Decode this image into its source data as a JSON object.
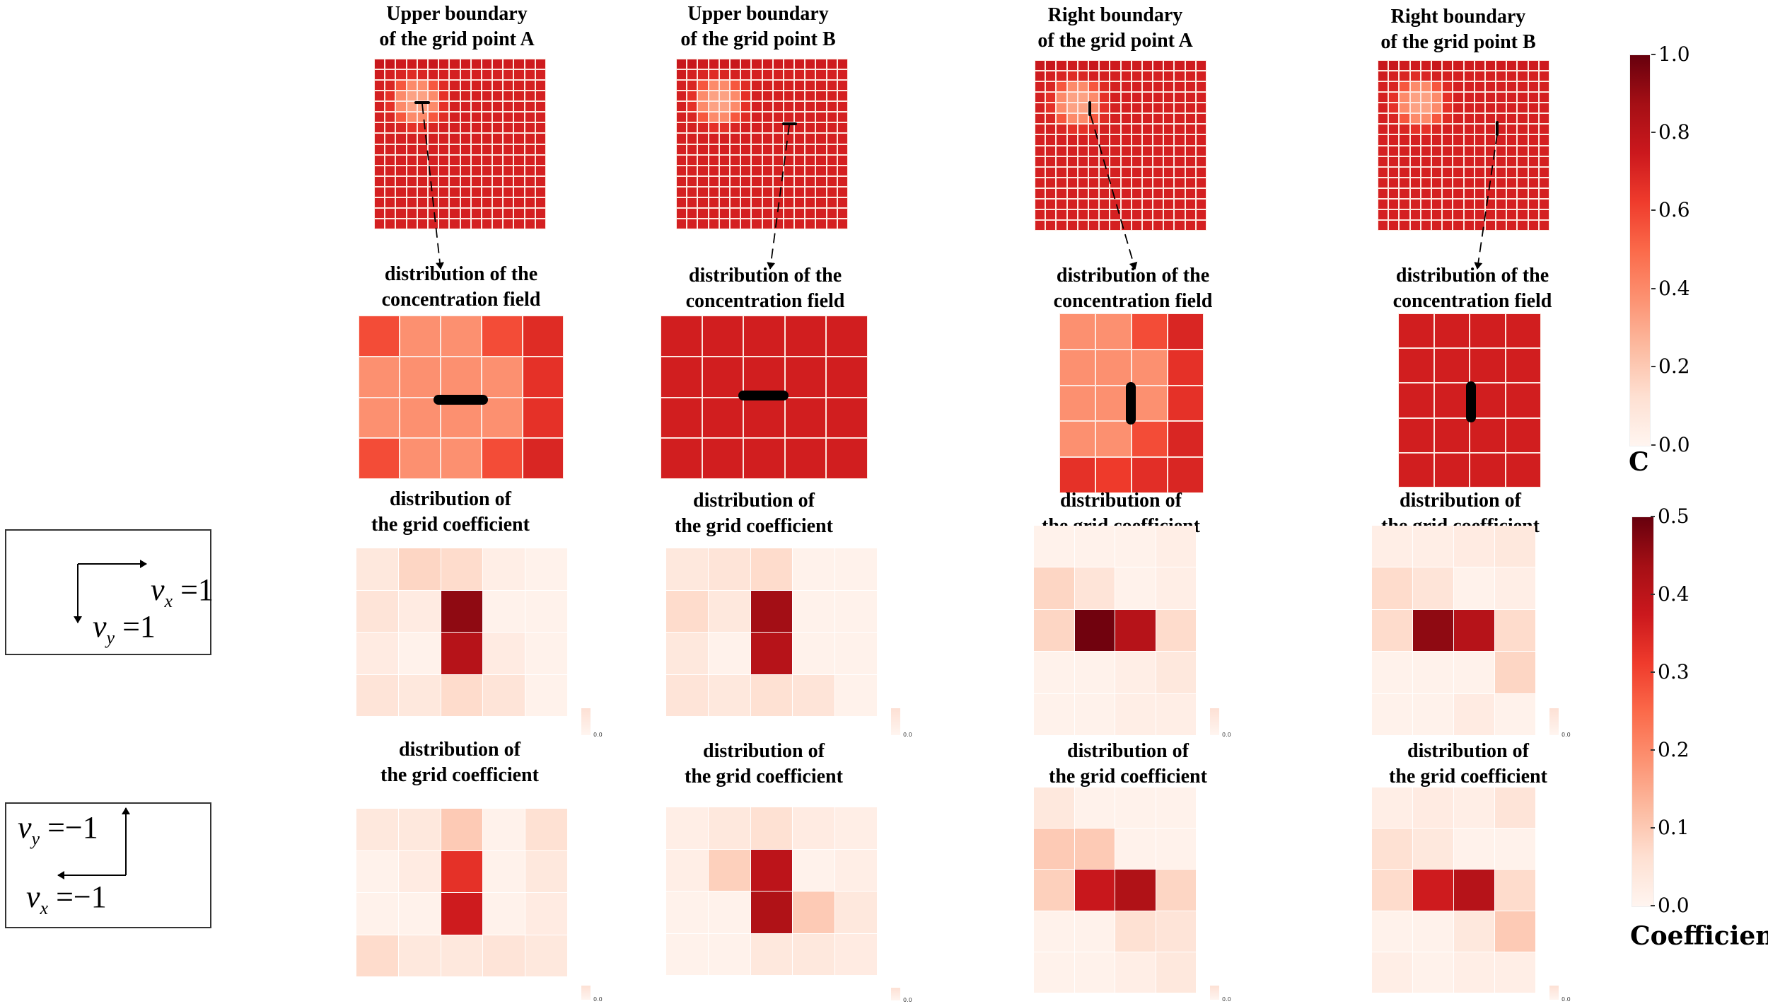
{
  "columns": [
    {
      "title": [
        "Upper boundary",
        "of the grid point A"
      ],
      "conc_title": [
        "distribution of the",
        "concentration field"
      ],
      "coef_title_1": [
        "distribution of",
        "the grid coefficient"
      ],
      "coef_title_2": [
        "distribution of",
        "the grid coefficient"
      ]
    },
    {
      "title": [
        "Upper boundary",
        "of the grid point B"
      ],
      "conc_title": [
        "distribution of the",
        "concentration field"
      ],
      "coef_title_1": [
        "distribution of",
        "the grid coefficient"
      ],
      "coef_title_2": [
        "distribution of",
        "the grid coefficient"
      ]
    },
    {
      "title": [
        "Right boundary",
        "of the grid point A"
      ],
      "conc_title": [
        "distribution of the",
        "concentration field"
      ],
      "coef_title_1": [
        "distribution of",
        "the grid coefficient"
      ],
      "coef_title_2": [
        "distribution of",
        "the grid coefficient"
      ]
    },
    {
      "title": [
        "Right boundary",
        "of the grid point B"
      ],
      "conc_title": [
        "distribution of the",
        "concentration field"
      ],
      "coef_title_1": [
        "distribution of",
        "the grid coefficient"
      ],
      "coef_title_2": [
        "distribution of",
        "the grid coefficient"
      ]
    }
  ],
  "global_field": [
    [
      0.76,
      0.76,
      0.74,
      0.74,
      0.74,
      0.76,
      0.74,
      0.74,
      0.74,
      0.74,
      0.74,
      0.74,
      0.74,
      0.74,
      0.74,
      0.74
    ],
    [
      0.74,
      0.72,
      0.7,
      0.68,
      0.7,
      0.72,
      0.72,
      0.72,
      0.72,
      0.72,
      0.72,
      0.72,
      0.72,
      0.72,
      0.72,
      0.72
    ],
    [
      0.72,
      0.7,
      0.55,
      0.4,
      0.4,
      0.55,
      0.68,
      0.72,
      0.72,
      0.72,
      0.72,
      0.72,
      0.72,
      0.72,
      0.72,
      0.72
    ],
    [
      0.72,
      0.66,
      0.4,
      0.33,
      0.33,
      0.4,
      0.66,
      0.72,
      0.72,
      0.72,
      0.72,
      0.72,
      0.72,
      0.72,
      0.72,
      0.72
    ],
    [
      0.72,
      0.66,
      0.4,
      0.33,
      0.33,
      0.4,
      0.66,
      0.72,
      0.72,
      0.72,
      0.72,
      0.72,
      0.72,
      0.72,
      0.72,
      0.72
    ],
    [
      0.72,
      0.7,
      0.55,
      0.4,
      0.4,
      0.55,
      0.68,
      0.72,
      0.72,
      0.72,
      0.72,
      0.72,
      0.72,
      0.72,
      0.72,
      0.72
    ],
    [
      0.72,
      0.72,
      0.7,
      0.66,
      0.66,
      0.7,
      0.72,
      0.72,
      0.72,
      0.72,
      0.72,
      0.72,
      0.72,
      0.72,
      0.72,
      0.72
    ],
    [
      0.72,
      0.72,
      0.72,
      0.72,
      0.72,
      0.72,
      0.72,
      0.72,
      0.72,
      0.72,
      0.72,
      0.72,
      0.72,
      0.72,
      0.72,
      0.72
    ],
    [
      0.72,
      0.72,
      0.72,
      0.72,
      0.72,
      0.72,
      0.72,
      0.72,
      0.72,
      0.72,
      0.72,
      0.72,
      0.72,
      0.72,
      0.72,
      0.72
    ],
    [
      0.72,
      0.72,
      0.72,
      0.72,
      0.72,
      0.72,
      0.72,
      0.72,
      0.72,
      0.72,
      0.72,
      0.72,
      0.72,
      0.72,
      0.72,
      0.72
    ],
    [
      0.72,
      0.72,
      0.72,
      0.72,
      0.72,
      0.72,
      0.72,
      0.72,
      0.72,
      0.72,
      0.72,
      0.72,
      0.72,
      0.72,
      0.72,
      0.72
    ],
    [
      0.72,
      0.72,
      0.72,
      0.72,
      0.72,
      0.72,
      0.72,
      0.72,
      0.72,
      0.72,
      0.72,
      0.72,
      0.72,
      0.72,
      0.72,
      0.72
    ],
    [
      0.72,
      0.72,
      0.72,
      0.72,
      0.72,
      0.72,
      0.72,
      0.72,
      0.72,
      0.72,
      0.72,
      0.72,
      0.72,
      0.72,
      0.72,
      0.72
    ],
    [
      0.72,
      0.72,
      0.72,
      0.72,
      0.72,
      0.72,
      0.72,
      0.72,
      0.72,
      0.72,
      0.72,
      0.72,
      0.72,
      0.72,
      0.72,
      0.72
    ],
    [
      0.72,
      0.72,
      0.72,
      0.72,
      0.72,
      0.72,
      0.72,
      0.72,
      0.72,
      0.72,
      0.72,
      0.72,
      0.72,
      0.72,
      0.72,
      0.72
    ],
    [
      0.72,
      0.72,
      0.72,
      0.72,
      0.72,
      0.72,
      0.72,
      0.72,
      0.72,
      0.72,
      0.72,
      0.72,
      0.72,
      0.72,
      0.72,
      0.72
    ]
  ],
  "local_fields": [
    [
      [
        0.58,
        0.38,
        0.38,
        0.58,
        0.68
      ],
      [
        0.38,
        0.38,
        0.38,
        0.38,
        0.66
      ],
      [
        0.38,
        0.38,
        0.38,
        0.38,
        0.66
      ],
      [
        0.58,
        0.38,
        0.38,
        0.58,
        0.7
      ]
    ],
    [
      [
        0.73,
        0.73,
        0.73,
        0.73,
        0.73
      ],
      [
        0.73,
        0.73,
        0.73,
        0.73,
        0.73
      ],
      [
        0.73,
        0.73,
        0.73,
        0.73,
        0.73
      ],
      [
        0.73,
        0.73,
        0.73,
        0.73,
        0.73
      ]
    ],
    [
      [
        0.38,
        0.38,
        0.58,
        0.7
      ],
      [
        0.38,
        0.38,
        0.38,
        0.66
      ],
      [
        0.38,
        0.38,
        0.38,
        0.66
      ],
      [
        0.38,
        0.38,
        0.58,
        0.7
      ],
      [
        0.66,
        0.63,
        0.67,
        0.7
      ]
    ],
    [
      [
        0.73,
        0.73,
        0.73,
        0.73
      ],
      [
        0.73,
        0.73,
        0.73,
        0.73
      ],
      [
        0.73,
        0.73,
        0.73,
        0.73
      ],
      [
        0.73,
        0.73,
        0.73,
        0.73
      ],
      [
        0.73,
        0.73,
        0.73,
        0.73
      ]
    ]
  ],
  "coefficients_positive_velocity": [
    [
      [
        0.04,
        0.08,
        0.07,
        0.02,
        0.01
      ],
      [
        0.05,
        0.03,
        0.46,
        0.01,
        0.01
      ],
      [
        0.03,
        0.01,
        0.41,
        0.03,
        0.01
      ],
      [
        0.05,
        0.04,
        0.07,
        0.05,
        0.01
      ]
    ],
    [
      [
        0.04,
        0.05,
        0.07,
        0.01,
        0.01
      ],
      [
        0.07,
        0.04,
        0.44,
        0.01,
        0.01
      ],
      [
        0.04,
        0.01,
        0.41,
        0.01,
        0.01
      ],
      [
        0.05,
        0.04,
        0.06,
        0.05,
        0.01
      ]
    ],
    [
      [
        0.01,
        0.01,
        0.01,
        0.02
      ],
      [
        0.08,
        0.05,
        0.01,
        0.02
      ],
      [
        0.08,
        0.49,
        0.41,
        0.07
      ],
      [
        0.01,
        0.01,
        0.02,
        0.04
      ],
      [
        0.01,
        0.01,
        0.02,
        0.02
      ]
    ],
    [
      [
        0.02,
        0.02,
        0.03,
        0.04
      ],
      [
        0.07,
        0.05,
        0.01,
        0.02
      ],
      [
        0.07,
        0.46,
        0.41,
        0.07
      ],
      [
        0.01,
        0.01,
        0.01,
        0.08
      ],
      [
        0.01,
        0.01,
        0.03,
        0.01
      ]
    ]
  ],
  "coefficients_negative_velocity": [
    [
      [
        0.04,
        0.04,
        0.1,
        0.01,
        0.06
      ],
      [
        0.01,
        0.03,
        0.33,
        0.01,
        0.04
      ],
      [
        0.01,
        0.01,
        0.37,
        0.01,
        0.03
      ],
      [
        0.07,
        0.04,
        0.04,
        0.05,
        0.04
      ]
    ],
    [
      [
        0.02,
        0.04,
        0.06,
        0.03,
        0.02
      ],
      [
        0.02,
        0.09,
        0.4,
        0.01,
        0.02
      ],
      [
        0.01,
        0.01,
        0.42,
        0.1,
        0.04
      ],
      [
        0.01,
        0.01,
        0.04,
        0.04,
        0.03
      ]
    ],
    [
      [
        0.04,
        0.01,
        0.01,
        0.01
      ],
      [
        0.1,
        0.1,
        0.01,
        0.01
      ],
      [
        0.09,
        0.38,
        0.42,
        0.08
      ],
      [
        0.01,
        0.01,
        0.06,
        0.05
      ],
      [
        0.01,
        0.01,
        0.02,
        0.04
      ]
    ],
    [
      [
        0.02,
        0.03,
        0.02,
        0.05
      ],
      [
        0.06,
        0.04,
        0.01,
        0.01
      ],
      [
        0.07,
        0.37,
        0.41,
        0.07
      ],
      [
        0.01,
        0.01,
        0.04,
        0.1
      ],
      [
        0.02,
        0.01,
        0.02,
        0.02
      ]
    ]
  ],
  "mini_tick": "0.0",
  "colorbars": {
    "concentration": {
      "title": "C",
      "min": 0,
      "max": 1.0,
      "ticks": [
        "1.0",
        "0.8",
        "0.6",
        "0.4",
        "0.2",
        "0.0"
      ]
    },
    "coefficient": {
      "title": "Coefficient",
      "min": 0,
      "max": 0.5,
      "ticks": [
        "0.5",
        "0.4",
        "0.3",
        "0.2",
        "0.1",
        "0.0"
      ]
    }
  },
  "velocity_boxes": [
    {
      "vx_var": "v",
      "vx_sub": "x",
      "vx_val": "=1",
      "vy_var": "v",
      "vy_sub": "y",
      "vy_val": "=1"
    },
    {
      "vx_var": "v",
      "vx_sub": "x",
      "vx_val": "=−1",
      "vy_var": "v",
      "vy_sub": "y",
      "vy_val": "=−1"
    }
  ],
  "reds_colormap": [
    "#fff5f0",
    "#fee0d2",
    "#fcbba1",
    "#fc9272",
    "#fb6a4a",
    "#ef3b2c",
    "#cb181d",
    "#a50f15",
    "#67000d"
  ]
}
